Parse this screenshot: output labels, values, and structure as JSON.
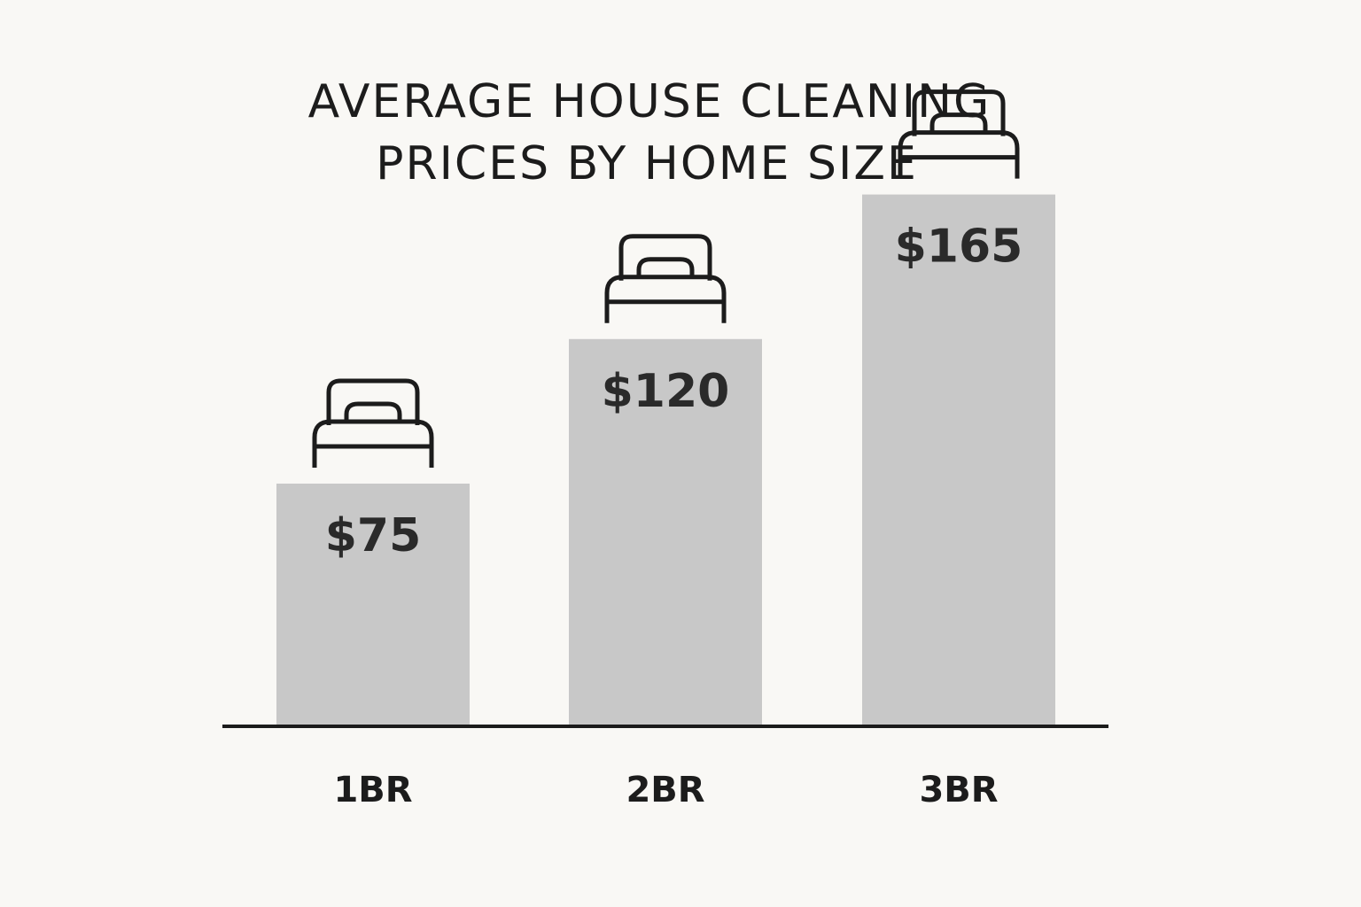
{
  "chart_data": {
    "type": "bar",
    "title_lines": [
      "AVERAGE HOUSE CLEANING",
      "PRICES BY HOME SIZE"
    ],
    "categories": [
      "1BR",
      "2BR",
      "3BR"
    ],
    "values": [
      75,
      120,
      165
    ],
    "value_labels": [
      "$75",
      "$120",
      "$165"
    ],
    "xlabel": "",
    "ylabel": "",
    "grid": false,
    "legend": "none",
    "bar_color": "#c8c8c8",
    "axis_color": "#1c1c1c",
    "icon": "bed-icon"
  }
}
